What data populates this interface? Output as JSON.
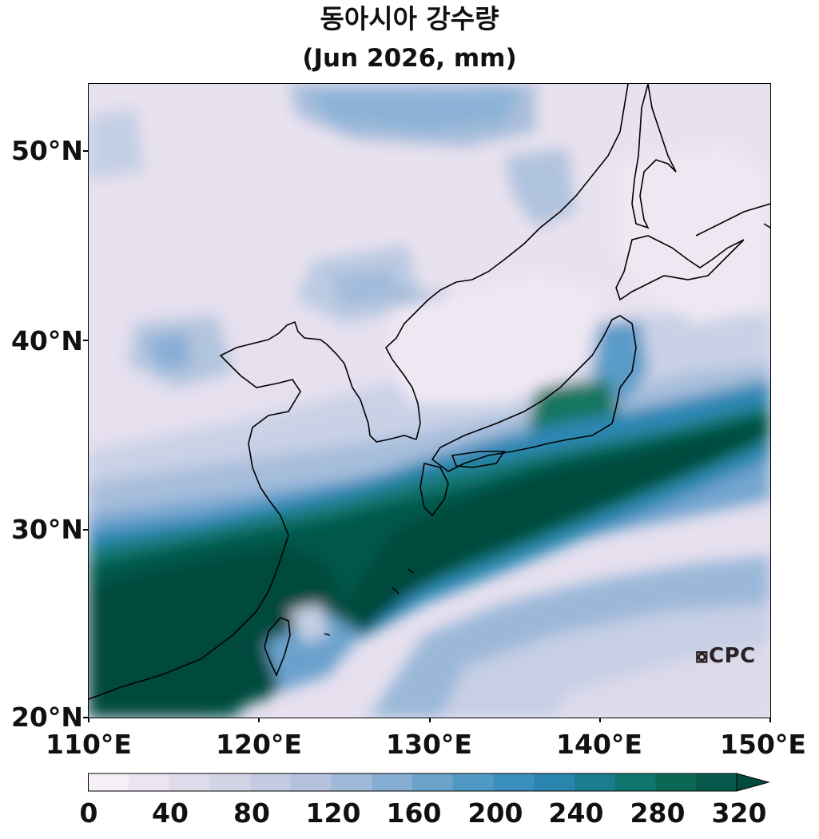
{
  "title": "동아시아 강수량",
  "subtitle": "(Jun 2026, mm)",
  "map": {
    "region": "East Asia",
    "lon_range": [
      110,
      150
    ],
    "lat_range": [
      20,
      53
    ],
    "lat_ticks": [
      "50°N",
      "40°N",
      "30°N",
      "20°N"
    ],
    "lon_ticks": [
      "110°E",
      "120°E",
      "130°E",
      "140°E",
      "150°E"
    ],
    "watermark": "CPC",
    "watermark_icon": "cpc-logo-icon"
  },
  "colorbar": {
    "levels": [
      0,
      20,
      40,
      60,
      80,
      100,
      120,
      140,
      160,
      180,
      200,
      220,
      240,
      260,
      280,
      300,
      320
    ],
    "labels": [
      "0",
      "40",
      "80",
      "120",
      "160",
      "200",
      "240",
      "280",
      "320"
    ],
    "extend": "max",
    "colors": [
      "#f6eff7",
      "#ece4f0",
      "#e0dbeb",
      "#d3d5e7",
      "#c4cbe2",
      "#b4c2dd",
      "#9fb9d9",
      "#86aed3",
      "#6ba3cd",
      "#5199c5",
      "#3a8fbe",
      "#2a85ae",
      "#1a7d8f",
      "#10746f",
      "#0a6855",
      "#06584a",
      "#024a3c"
    ]
  }
}
